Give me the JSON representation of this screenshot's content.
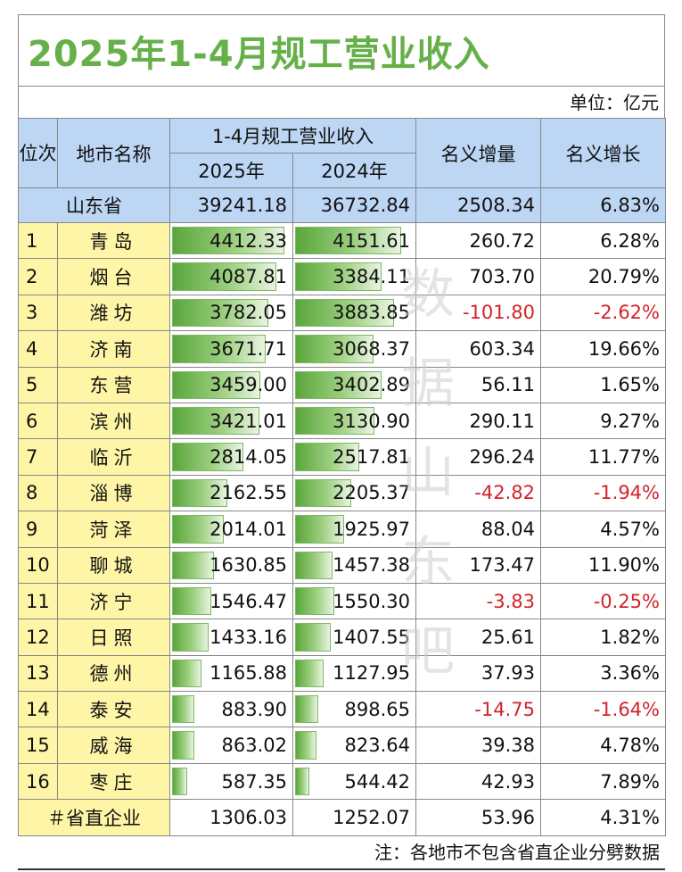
{
  "title": "2025年1-4月规工营业收入",
  "unit": "单位：亿元",
  "headers": {
    "rank": "位次",
    "city": "地市名称",
    "revenue_group": "1-4月规工营业收入",
    "y2025": "2025年",
    "y2024": "2024年",
    "increase": "名义增量",
    "growth": "名义增长"
  },
  "province": {
    "name": "山东省",
    "v2025": "39241.18",
    "v2024": "36732.84",
    "increase": "2508.34",
    "growth": "6.83%"
  },
  "rows": [
    {
      "rank": "1",
      "city": "青岛",
      "v2025": "4412.33",
      "v2024": "4151.61",
      "increase": "260.72",
      "growth": "6.28%",
      "n2025": 4412.33,
      "n2024": 4151.61,
      "neg": false
    },
    {
      "rank": "2",
      "city": "烟台",
      "v2025": "4087.81",
      "v2024": "3384.11",
      "increase": "703.70",
      "growth": "20.79%",
      "n2025": 4087.81,
      "n2024": 3384.11,
      "neg": false
    },
    {
      "rank": "3",
      "city": "潍坊",
      "v2025": "3782.05",
      "v2024": "3883.85",
      "increase": "-101.80",
      "growth": "-2.62%",
      "n2025": 3782.05,
      "n2024": 3883.85,
      "neg": true
    },
    {
      "rank": "4",
      "city": "济南",
      "v2025": "3671.71",
      "v2024": "3068.37",
      "increase": "603.34",
      "growth": "19.66%",
      "n2025": 3671.71,
      "n2024": 3068.37,
      "neg": false
    },
    {
      "rank": "5",
      "city": "东营",
      "v2025": "3459.00",
      "v2024": "3402.89",
      "increase": "56.11",
      "growth": "1.65%",
      "n2025": 3459.0,
      "n2024": 3402.89,
      "neg": false
    },
    {
      "rank": "6",
      "city": "滨州",
      "v2025": "3421.01",
      "v2024": "3130.90",
      "increase": "290.11",
      "growth": "9.27%",
      "n2025": 3421.01,
      "n2024": 3130.9,
      "neg": false
    },
    {
      "rank": "7",
      "city": "临沂",
      "v2025": "2814.05",
      "v2024": "2517.81",
      "increase": "296.24",
      "growth": "11.77%",
      "n2025": 2814.05,
      "n2024": 2517.81,
      "neg": false
    },
    {
      "rank": "8",
      "city": "淄博",
      "v2025": "2162.55",
      "v2024": "2205.37",
      "increase": "-42.82",
      "growth": "-1.94%",
      "n2025": 2162.55,
      "n2024": 2205.37,
      "neg": true
    },
    {
      "rank": "9",
      "city": "菏泽",
      "v2025": "2014.01",
      "v2024": "1925.97",
      "increase": "88.04",
      "growth": "4.57%",
      "n2025": 2014.01,
      "n2024": 1925.97,
      "neg": false
    },
    {
      "rank": "10",
      "city": "聊城",
      "v2025": "1630.85",
      "v2024": "1457.38",
      "increase": "173.47",
      "growth": "11.90%",
      "n2025": 1630.85,
      "n2024": 1457.38,
      "neg": false
    },
    {
      "rank": "11",
      "city": "济宁",
      "v2025": "1546.47",
      "v2024": "1550.30",
      "increase": "-3.83",
      "growth": "-0.25%",
      "n2025": 1546.47,
      "n2024": 1550.3,
      "neg": true
    },
    {
      "rank": "12",
      "city": "日照",
      "v2025": "1433.16",
      "v2024": "1407.55",
      "increase": "25.61",
      "growth": "1.82%",
      "n2025": 1433.16,
      "n2024": 1407.55,
      "neg": false
    },
    {
      "rank": "13",
      "city": "德州",
      "v2025": "1165.88",
      "v2024": "1127.95",
      "increase": "37.93",
      "growth": "3.36%",
      "n2025": 1165.88,
      "n2024": 1127.95,
      "neg": false
    },
    {
      "rank": "14",
      "city": "泰安",
      "v2025": "883.90",
      "v2024": "898.65",
      "increase": "-14.75",
      "growth": "-1.64%",
      "n2025": 883.9,
      "n2024": 898.65,
      "neg": true
    },
    {
      "rank": "15",
      "city": "威海",
      "v2025": "863.02",
      "v2024": "823.64",
      "increase": "39.38",
      "growth": "4.78%",
      "n2025": 863.02,
      "n2024": 823.64,
      "neg": false
    },
    {
      "rank": "16",
      "city": "枣庄",
      "v2025": "587.35",
      "v2024": "544.42",
      "increase": "42.93",
      "growth": "7.89%",
      "n2025": 587.35,
      "n2024": 544.42,
      "neg": false
    }
  ],
  "footer": {
    "label": "＃省直企业",
    "v2025": "1306.03",
    "v2024": "1252.07",
    "increase": "53.96",
    "growth": "4.31%"
  },
  "note": "注：各地市不包含省直企业分劈数据",
  "watermark": "数据山东吧",
  "colors": {
    "header_bg": "#bcd6f3",
    "city_bg": "#fff5a6",
    "title": "#66b04a",
    "negative": "#d2232a"
  }
}
